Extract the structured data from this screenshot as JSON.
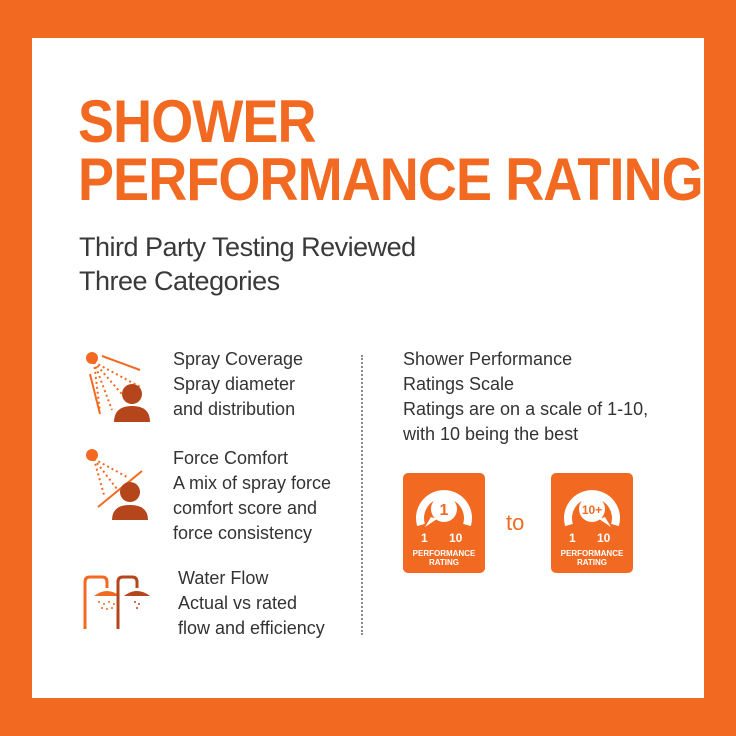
{
  "title": {
    "line1": "SHOWER",
    "line2": "PERFORMANCE RATINGS"
  },
  "subtitle": {
    "line1": "Third Party Testing Reviewed",
    "line2": "Three Categories"
  },
  "categories": [
    {
      "icon": "spray-coverage-icon",
      "heading": "Spray Coverage",
      "desc1": "Spray diameter",
      "desc2": "and distribution"
    },
    {
      "icon": "force-comfort-icon",
      "heading": "Force Comfort",
      "desc1": "A mix of spray force",
      "desc2": "comfort score and",
      "desc3": "force consistency"
    },
    {
      "icon": "water-flow-icon",
      "heading": "Water Flow",
      "desc1": "Actual vs rated",
      "desc2": "flow and efficiency"
    }
  ],
  "scale": {
    "heading1": "Shower Performance",
    "heading2": "Ratings Scale",
    "desc1": "Ratings are on a scale of 1-10,",
    "desc2": "with 10 being the best",
    "to": "to"
  },
  "badges": [
    {
      "value": "1",
      "min": "1",
      "max": "10",
      "label1": "PERFORMANCE",
      "label2": "RATING"
    },
    {
      "value": "10+",
      "min": "1",
      "max": "10",
      "label1": "PERFORMANCE",
      "label2": "RATING"
    }
  ],
  "colors": {
    "orange": "#f26a21",
    "brown": "#b5451b"
  }
}
